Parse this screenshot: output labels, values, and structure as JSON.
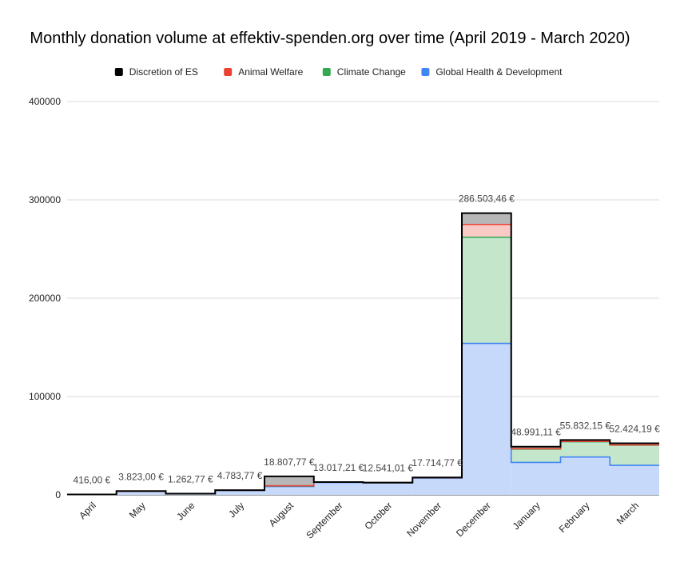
{
  "chart_data": {
    "type": "area",
    "stepped": true,
    "stacked": true,
    "title": "Monthly donation volume at effektiv-spenden.org over time (April 2019 - March 2020)",
    "xlabel": "",
    "ylabel": "",
    "ylim": [
      0,
      400000
    ],
    "yticks": [
      "0",
      "100000",
      "200000",
      "300000",
      "400000"
    ],
    "grid": true,
    "legend_position": "top",
    "categories": [
      "April",
      "May",
      "June",
      "July",
      "August",
      "September",
      "October",
      "November",
      "December",
      "January",
      "February",
      "March"
    ],
    "series": [
      {
        "name": "Global Health & Development",
        "color": "#4285f4",
        "fill": "#c6d9fb",
        "values": [
          300,
          3500,
          1100,
          4300,
          8500,
          12500,
          12000,
          17000,
          154000,
          33000,
          38500,
          30000
        ]
      },
      {
        "name": "Climate Change",
        "color": "#34a853",
        "fill": "#c4e6cb",
        "values": [
          50,
          200,
          100,
          300,
          500,
          300,
          300,
          400,
          108000,
          13500,
          15500,
          20500
        ]
      },
      {
        "name": "Animal Welfare",
        "color": "#ea4335",
        "fill": "#f8c9c5",
        "values": [
          0,
          0,
          0,
          0,
          200,
          0,
          0,
          0,
          13000,
          400,
          300,
          300
        ]
      },
      {
        "name": "Discretion of ES",
        "color": "#000000",
        "fill": "#b7b7b7",
        "values": [
          66,
          123,
          62.77,
          183.77,
          9607.77,
          217.21,
          241.01,
          314.77,
          11503.46,
          2091.11,
          1532.15,
          1624.19
        ]
      }
    ],
    "totals_labels": [
      "416,00 €",
      "3.823,00 €",
      "1.262,77 €",
      "4.783,77 €",
      "18.807,77 €",
      "13.017,21 €",
      "12.541,01 €",
      "17.714,77 €",
      "286.503,46 €",
      "48.991,11 €",
      "55.832,15 €",
      "52.424,19 €"
    ],
    "totals": [
      416.0,
      3823.0,
      1262.77,
      4783.77,
      18807.77,
      13017.21,
      12541.01,
      17714.77,
      286503.46,
      48991.11,
      55832.15,
      52424.19
    ],
    "legend_order": [
      "Discretion of ES",
      "Animal Welfare",
      "Climate Change",
      "Global Health & Development"
    ]
  }
}
